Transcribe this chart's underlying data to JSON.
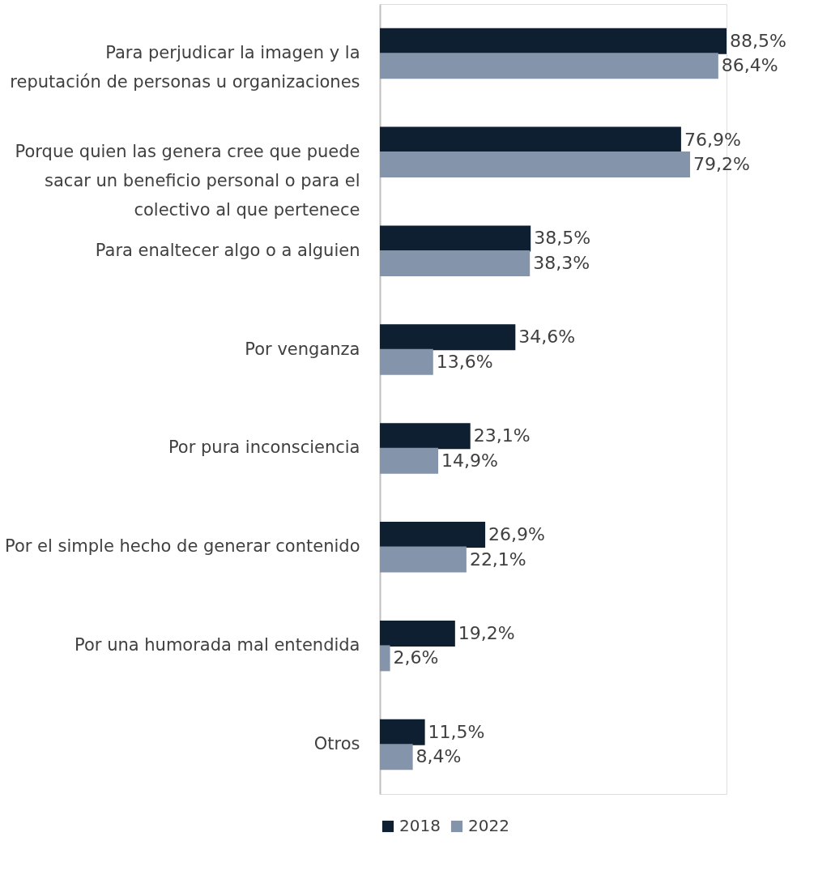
{
  "chart_data": {
    "type": "bar",
    "orientation": "horizontal",
    "legend": "bottom",
    "grid": false,
    "categories": [
      "Para perjudicar la imagen y la reputación de personas u organizaciones",
      "Porque quien las genera cree que puede sacar un beneficio personal o para el colectivo al que pertenece",
      "Para enaltecer algo o a alguien",
      "Por venganza",
      "Por pura inconsciencia",
      "Por el simple hecho de generar contenido",
      "Por una humorada mal entendida",
      "Otros"
    ],
    "series": [
      {
        "name": "2018",
        "color": "#0d1f30",
        "values": [
          88.5,
          76.9,
          38.5,
          34.6,
          23.1,
          26.9,
          19.2,
          11.5
        ],
        "value_labels": [
          "88,5%",
          "76,9%",
          "38,5%",
          "34,6%",
          "23,1%",
          "26,9%",
          "19,2%",
          "11,5%"
        ]
      },
      {
        "name": "2022",
        "color": "#8494aa",
        "values": [
          86.4,
          79.2,
          38.3,
          13.6,
          14.9,
          22.1,
          2.6,
          8.4
        ],
        "value_labels": [
          "86,4%",
          "79,2%",
          "38,3%",
          "13,6%",
          "14,9%",
          "22,1%",
          "2,6%",
          "8,4%"
        ]
      }
    ]
  }
}
